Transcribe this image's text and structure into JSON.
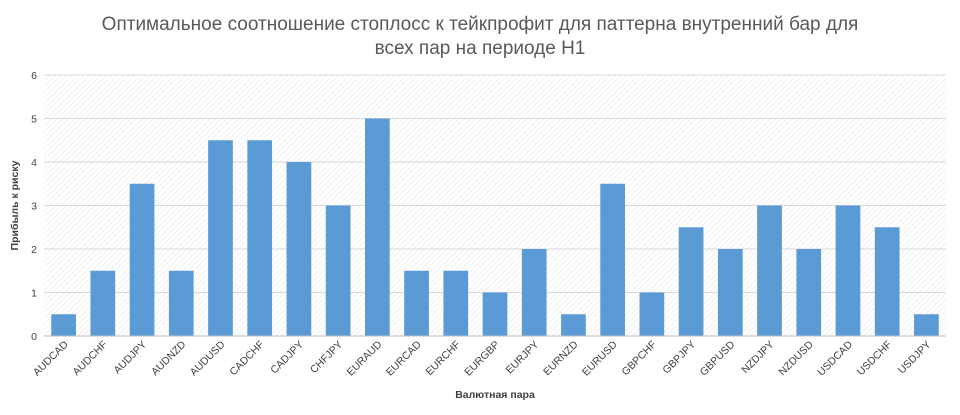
{
  "chart_data": {
    "type": "bar",
    "title_line1": "Оптимальное соотношение стоплосс к тейкпрофит для паттерна внутренний бар для",
    "title_line2": "всех пар на периоде H1",
    "xlabel": "Валютная пара",
    "ylabel": "Прибыль к риску",
    "ylim": [
      0,
      6
    ],
    "yticks": [
      0,
      1,
      2,
      3,
      4,
      5,
      6
    ],
    "grid": true,
    "bar_color": "#5B9BD5",
    "categories": [
      "AUDCAD",
      "AUDCHF",
      "AUDJPY",
      "AUDNZD",
      "AUDUSD",
      "CADCHF",
      "CADJPY",
      "CHFJPY",
      "EURAUD",
      "EURCAD",
      "EURCHF",
      "EURGBP",
      "EURJPY",
      "EURNZD",
      "EURUSD",
      "GBPCHF",
      "GBPJPY",
      "GBPUSD",
      "NZDJPY",
      "NZDUSD",
      "USDCAD",
      "USDCHF",
      "USDJPY"
    ],
    "values": [
      0.5,
      1.5,
      3.5,
      1.5,
      4.5,
      4.5,
      4.0,
      3.0,
      5.0,
      1.5,
      1.5,
      1.0,
      2.0,
      0.5,
      3.5,
      1.0,
      2.5,
      2.0,
      3.0,
      2.0,
      3.0,
      2.5,
      0.5
    ]
  }
}
